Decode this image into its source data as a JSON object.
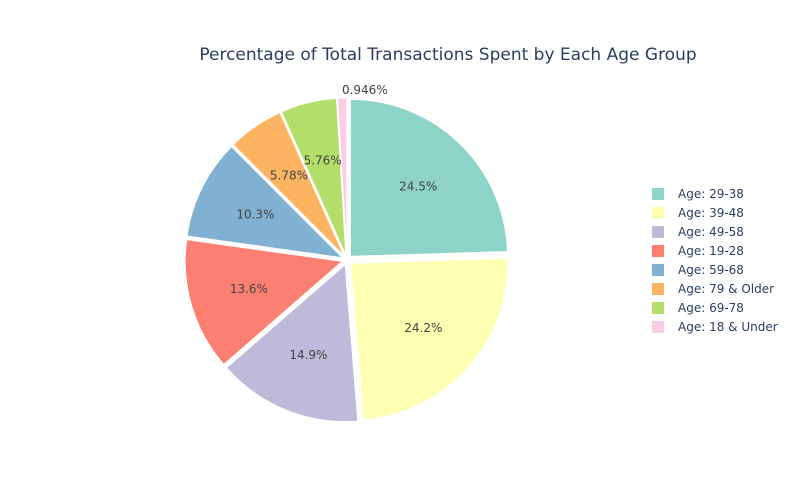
{
  "chart_data": {
    "type": "pie",
    "title": "Percentage of Total Transactions Spent by Each Age Group",
    "slices": [
      {
        "label": "Age: 29-38",
        "value": 24.5,
        "text": "24.5%",
        "color": "#8dd3c7"
      },
      {
        "label": "Age: 39-48",
        "value": 24.2,
        "text": "24.2%",
        "color": "#ffffb3"
      },
      {
        "label": "Age: 49-58",
        "value": 14.9,
        "text": "14.9%",
        "color": "#bebada"
      },
      {
        "label": "Age: 19-28",
        "value": 13.6,
        "text": "13.6%",
        "color": "#fb8072"
      },
      {
        "label": "Age: 59-68",
        "value": 10.3,
        "text": "10.3%",
        "color": "#80b1d3"
      },
      {
        "label": "Age: 79 & Older",
        "value": 5.78,
        "text": "5.78%",
        "color": "#fdb462"
      },
      {
        "label": "Age: 69-78",
        "value": 5.76,
        "text": "5.76%",
        "color": "#b3de69"
      },
      {
        "label": "Age: 18 & Under",
        "value": 0.946,
        "text": "0.946%",
        "color": "#fccde5"
      }
    ],
    "direction": "clockwise",
    "exploded": true,
    "legend_position": "right"
  }
}
